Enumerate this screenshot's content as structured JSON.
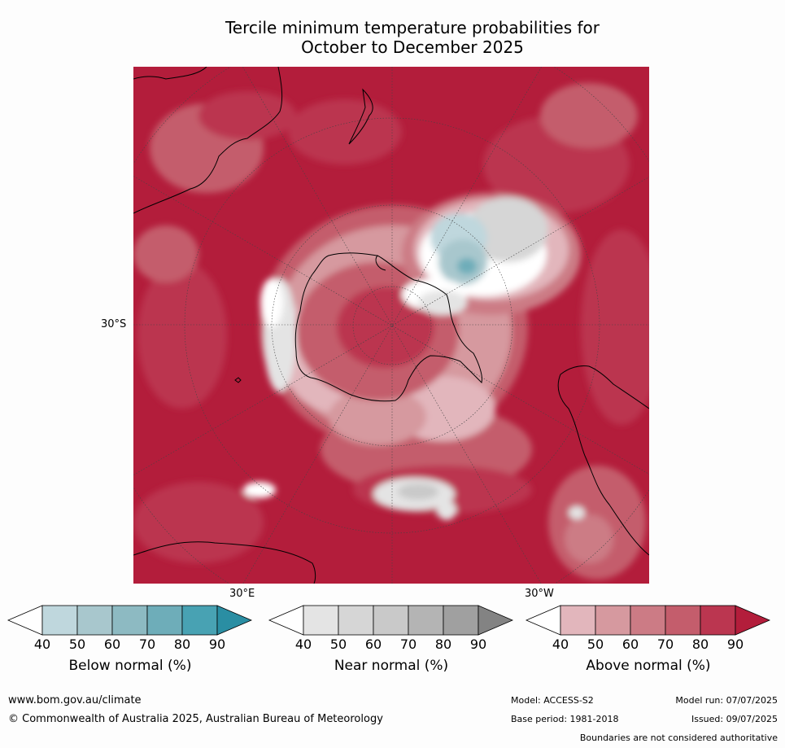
{
  "title_line1": "Tercile minimum temperature probabilities for",
  "title_line2": "October to December 2025",
  "map": {
    "latitude_label": "30°S",
    "longitude_labels": [
      "30°E",
      "30°W"
    ]
  },
  "colorbars": [
    {
      "label": "Below normal (%)",
      "ticks": [
        "40",
        "50",
        "60",
        "70",
        "80",
        "90"
      ],
      "colors": [
        "#ffffff",
        "#bfd7dd",
        "#a8c7cd",
        "#8dbac2",
        "#6eadb9",
        "#48a2b3",
        "#2a8ea3"
      ]
    },
    {
      "label": "Near normal (%)",
      "ticks": [
        "40",
        "50",
        "60",
        "70",
        "80",
        "90"
      ],
      "colors": [
        "#ffffff",
        "#e4e4e4",
        "#d6d6d6",
        "#c9c9c9",
        "#b4b4b4",
        "#a0a0a0",
        "#838383"
      ]
    },
    {
      "label": "Above normal (%)",
      "ticks": [
        "40",
        "50",
        "60",
        "70",
        "80",
        "90"
      ],
      "colors": [
        "#ffffff",
        "#e2b6bc",
        "#d6999f",
        "#cc7b85",
        "#c45d6c",
        "#bb3650",
        "#b31d3b"
      ]
    }
  ],
  "footer": {
    "website": "www.bom.gov.au/climate",
    "copyright": "© Commonwealth of Australia 2025, Australian Bureau of Meteorology",
    "model": "Model: ACCESS-S2",
    "base_period": "Base period: 1981-2018",
    "model_run": "Model run: 07/07/2025",
    "issued": "Issued: 09/07/2025",
    "disclaimer": "Boundaries are not considered authoritative"
  }
}
